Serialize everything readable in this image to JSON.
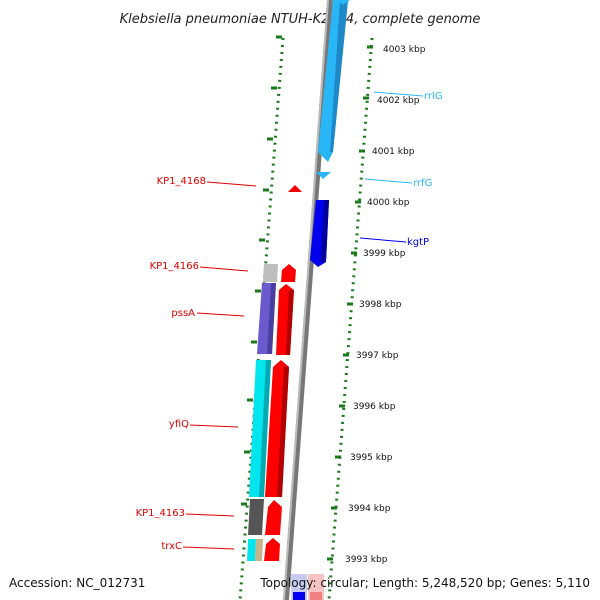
{
  "title": "Klebsiella pneumoniae NTUH-K2044, complete genome",
  "accession": "Accession: NC_012731",
  "topology": "Topology: circular; Length: 5,248,520 bp; Genes: 5,110",
  "colors": {
    "rrna": "#29b6f6",
    "trna_arrow": "#29b6f6",
    "forward_gene": "#0000ee",
    "reverse_gene": "#ff0000",
    "cog_cyan": "#00e5ee",
    "cog_purple": "#6a5acd",
    "cog_gray": "#bdbdbd",
    "cog_dark": "#555555",
    "cog_tan": "#c8b48c",
    "ruler_green": "#1a7a1a",
    "backbone": "#888888"
  },
  "kbp_ticks": [
    "4003 kbp",
    "4002 kbp",
    "4001 kbp",
    "4000 kbp",
    "3999 kbp",
    "3998 kbp",
    "3997 kbp",
    "3996 kbp",
    "3995 kbp",
    "3994 kbp",
    "3993 kbp"
  ],
  "labels": {
    "right": [
      {
        "text": "rrlG",
        "color": "#29b6f6"
      },
      {
        "text": "rrfG",
        "color": "#29b6f6"
      },
      {
        "text": "kgtP",
        "color": "#0000ee"
      }
    ],
    "left": [
      {
        "text": "KP1_4168",
        "color": "#dd0000"
      },
      {
        "text": "KP1_4166",
        "color": "#dd0000"
      },
      {
        "text": "pssA",
        "color": "#dd0000"
      },
      {
        "text": "yfiQ",
        "color": "#dd0000"
      },
      {
        "text": "KP1_4163",
        "color": "#dd0000"
      },
      {
        "text": "trxC",
        "color": "#dd0000"
      }
    ]
  }
}
